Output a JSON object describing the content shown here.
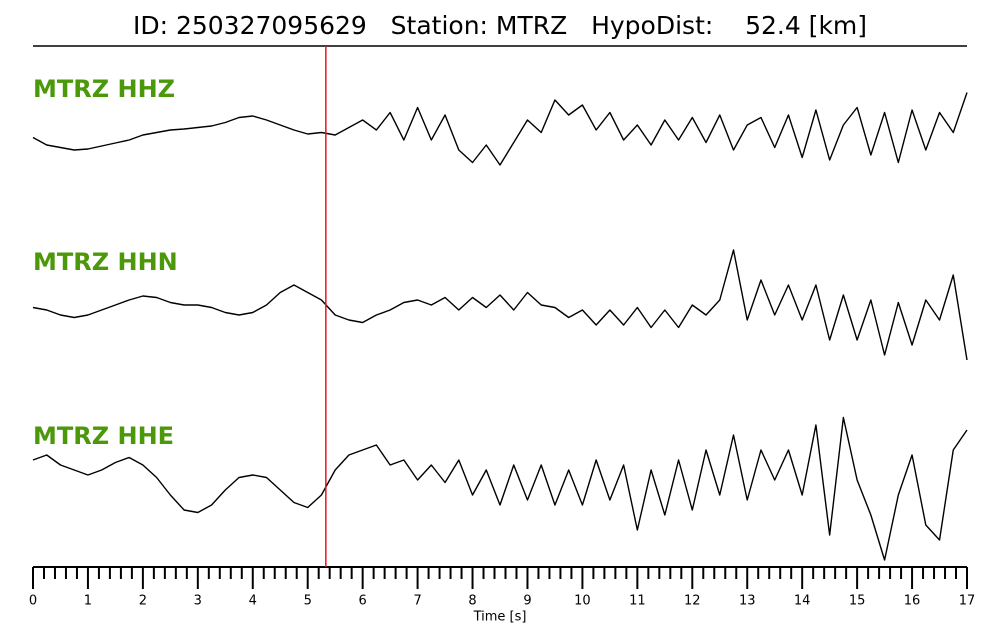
{
  "chart_data": {
    "type": "line",
    "title": "ID: 250327095629   Station: MTRZ   HypoDist:    52.4 [km]",
    "xlabel": "Time [s]",
    "xlim": [
      0,
      17
    ],
    "xticks": [
      0,
      1,
      2,
      3,
      4,
      5,
      6,
      7,
      8,
      9,
      10,
      11,
      12,
      13,
      14,
      15,
      16,
      17
    ],
    "xminor_per_major": 5,
    "pick_time": 5.33,
    "pick_color": "#e8161b",
    "label_color": "#4b990b",
    "line_color": "#000000",
    "x": [
      0,
      0.25,
      0.5,
      0.75,
      1,
      1.25,
      1.5,
      1.75,
      2,
      2.25,
      2.5,
      2.75,
      3,
      3.25,
      3.5,
      3.75,
      4,
      4.25,
      4.5,
      4.75,
      5,
      5.25,
      5.5,
      5.75,
      6,
      6.25,
      6.5,
      6.75,
      7,
      7.25,
      7.5,
      7.75,
      8,
      8.25,
      8.5,
      8.75,
      9,
      9.25,
      9.5,
      9.75,
      10,
      10.25,
      10.5,
      10.75,
      11,
      11.25,
      11.5,
      11.75,
      12,
      12.25,
      12.5,
      12.75,
      13,
      13.25,
      13.5,
      13.75,
      14,
      14.25,
      14.5,
      14.75,
      15,
      15.25,
      15.5,
      15.75,
      16,
      16.25,
      16.5,
      16.75,
      17
    ],
    "series": [
      {
        "name": "MTRZ HHZ",
        "values": [
          -0.05,
          -0.2,
          -0.25,
          -0.3,
          -0.28,
          -0.22,
          -0.16,
          -0.1,
          0.0,
          0.05,
          0.1,
          0.12,
          0.15,
          0.18,
          0.25,
          0.35,
          0.38,
          0.3,
          0.2,
          0.1,
          0.02,
          0.05,
          0.0,
          0.15,
          0.3,
          0.1,
          0.45,
          -0.1,
          0.55,
          -0.1,
          0.4,
          -0.3,
          -0.55,
          -0.2,
          -0.6,
          -0.15,
          0.3,
          0.05,
          0.7,
          0.4,
          0.6,
          0.1,
          0.45,
          -0.1,
          0.2,
          -0.2,
          0.3,
          -0.1,
          0.35,
          -0.15,
          0.4,
          -0.3,
          0.2,
          0.35,
          -0.25,
          0.4,
          -0.45,
          0.5,
          -0.5,
          0.2,
          0.55,
          -0.4,
          0.45,
          -0.55,
          0.5,
          -0.3,
          0.45,
          0.05,
          0.85
        ]
      },
      {
        "name": "MTRZ HHN",
        "values": [
          0.05,
          0.0,
          -0.1,
          -0.15,
          -0.1,
          0.0,
          0.1,
          0.2,
          0.28,
          0.25,
          0.15,
          0.1,
          0.1,
          0.05,
          -0.05,
          -0.1,
          -0.05,
          0.1,
          0.35,
          0.5,
          0.35,
          0.2,
          -0.1,
          -0.2,
          -0.25,
          -0.1,
          0.0,
          0.15,
          0.2,
          0.1,
          0.25,
          0.0,
          0.25,
          0.05,
          0.3,
          0.0,
          0.35,
          0.1,
          0.05,
          -0.15,
          0.0,
          -0.3,
          0.0,
          -0.3,
          0.05,
          -0.35,
          0.0,
          -0.35,
          0.1,
          -0.1,
          0.2,
          1.2,
          -0.2,
          0.6,
          -0.1,
          0.5,
          -0.2,
          0.5,
          -0.6,
          0.3,
          -0.6,
          0.2,
          -0.9,
          0.15,
          -0.7,
          0.2,
          -0.2,
          0.7,
          -1.0
        ]
      },
      {
        "name": "MTRZ HHE",
        "values": [
          0.4,
          0.5,
          0.3,
          0.2,
          0.1,
          0.2,
          0.35,
          0.45,
          0.3,
          0.05,
          -0.3,
          -0.6,
          -0.65,
          -0.5,
          -0.2,
          0.05,
          0.1,
          0.05,
          -0.2,
          -0.45,
          -0.55,
          -0.3,
          0.2,
          0.5,
          0.6,
          0.7,
          0.3,
          0.4,
          0.0,
          0.3,
          -0.05,
          0.4,
          -0.3,
          0.2,
          -0.5,
          0.3,
          -0.4,
          0.3,
          -0.5,
          0.2,
          -0.5,
          0.4,
          -0.4,
          0.3,
          -1.0,
          0.2,
          -0.7,
          0.4,
          -0.6,
          0.6,
          -0.3,
          0.9,
          -0.4,
          0.6,
          0.0,
          0.6,
          -0.3,
          1.1,
          -1.1,
          1.25,
          0.0,
          -0.7,
          -1.6,
          -0.3,
          0.5,
          -0.9,
          -1.2,
          0.6,
          1.0
        ]
      }
    ]
  }
}
